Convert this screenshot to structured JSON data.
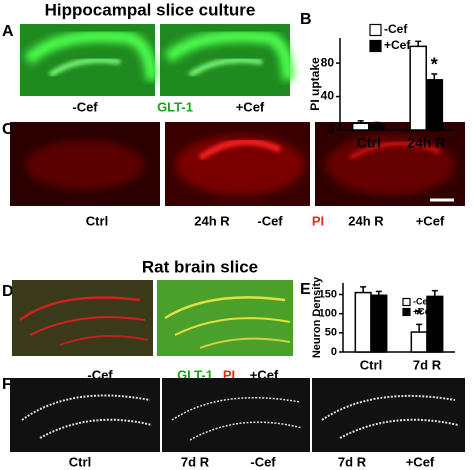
{
  "figure": {
    "title_top": "Hippocampal slice culture",
    "title_bottom": "Rat brain slice",
    "panel_labels": [
      "A",
      "B",
      "C",
      "D",
      "E",
      "F"
    ],
    "captions": {
      "A": [
        "-Cef",
        "GLT-1",
        "+Cef"
      ],
      "C": [
        "Ctrl",
        "24h R",
        "-Cef",
        "PI",
        "24h R",
        "+Cef"
      ],
      "D": [
        "-Cef",
        "GLT-1",
        "PI",
        "+Cef"
      ],
      "F": [
        "Ctrl",
        "7d R",
        "-Cef",
        "7d R",
        "+Cef"
      ]
    }
  },
  "chart_data": [
    {
      "type": "bar",
      "y_label": "PI uptake",
      "categories": [
        "Ctrl",
        "24h R"
      ],
      "series": [
        {
          "name": "-Cef",
          "color": "#ffffff",
          "values": [
            8,
            100
          ],
          "errors": [
            3,
            6
          ]
        },
        {
          "name": "+Cef",
          "color": "#000000",
          "values": [
            6,
            60
          ],
          "errors": [
            3,
            7
          ]
        }
      ],
      "ylim": [
        0,
        110
      ],
      "yticks": [
        0,
        40,
        80
      ],
      "annotations": [
        "*"
      ]
    },
    {
      "type": "bar",
      "y_label": "Neuron Density",
      "categories": [
        "Ctrl",
        "7d R"
      ],
      "series": [
        {
          "name": "-Cef",
          "color": "#ffffff",
          "values": [
            155,
            52
          ],
          "errors": [
            15,
            20
          ]
        },
        {
          "name": "+Cef",
          "color": "#000000",
          "values": [
            148,
            145
          ],
          "errors": [
            10,
            15
          ]
        }
      ],
      "ylim": [
        0,
        180
      ],
      "yticks": [
        0,
        50,
        100,
        150
      ],
      "annotations": [
        "*"
      ]
    }
  ]
}
